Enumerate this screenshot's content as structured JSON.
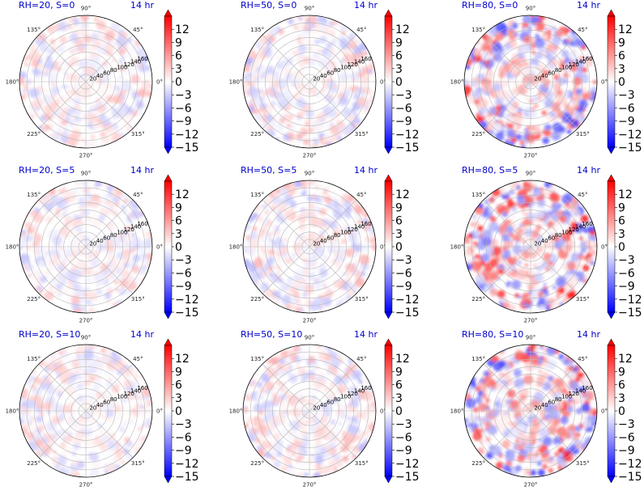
{
  "chart_data": {
    "type": "heatmap",
    "projection": "polar",
    "layout": {
      "rows": 3,
      "cols": 3
    },
    "time_label": "14 hr",
    "angle_ticks": [
      "90°",
      "45°",
      "0°",
      "315°",
      "270°",
      "225°",
      "180°",
      "135°"
    ],
    "radial_ticks": [
      "20",
      "40",
      "60",
      "80",
      "100",
      "120",
      "140",
      "160"
    ],
    "radial_range": [
      0,
      180
    ],
    "colorbar": {
      "colormap": "bwr",
      "range": [
        -15,
        15
      ],
      "ticks": [
        "12",
        "9",
        "6",
        "3",
        "0",
        "−3",
        "−6",
        "−9",
        "−12",
        "−15"
      ],
      "extend": "both"
    },
    "panels": [
      {
        "title": "RH=20, S=0",
        "intensity": 0.3,
        "bias": 0.08
      },
      {
        "title": "RH=50, S=0",
        "intensity": 0.32,
        "bias": 0.02
      },
      {
        "title": "RH=80, S=0",
        "intensity": 0.85,
        "bias": 0.1
      },
      {
        "title": "RH=20, S=5",
        "intensity": 0.28,
        "bias": 0.06
      },
      {
        "title": "RH=50, S=5",
        "intensity": 0.33,
        "bias": 0.04
      },
      {
        "title": "RH=80, S=5",
        "intensity": 0.9,
        "bias": 0.18
      },
      {
        "title": "RH=20, S=10",
        "intensity": 0.28,
        "bias": 0.06
      },
      {
        "title": "RH=50, S=10",
        "intensity": 0.33,
        "bias": 0.05
      },
      {
        "title": "RH=80, S=10",
        "intensity": 0.92,
        "bias": 0.12
      }
    ]
  }
}
